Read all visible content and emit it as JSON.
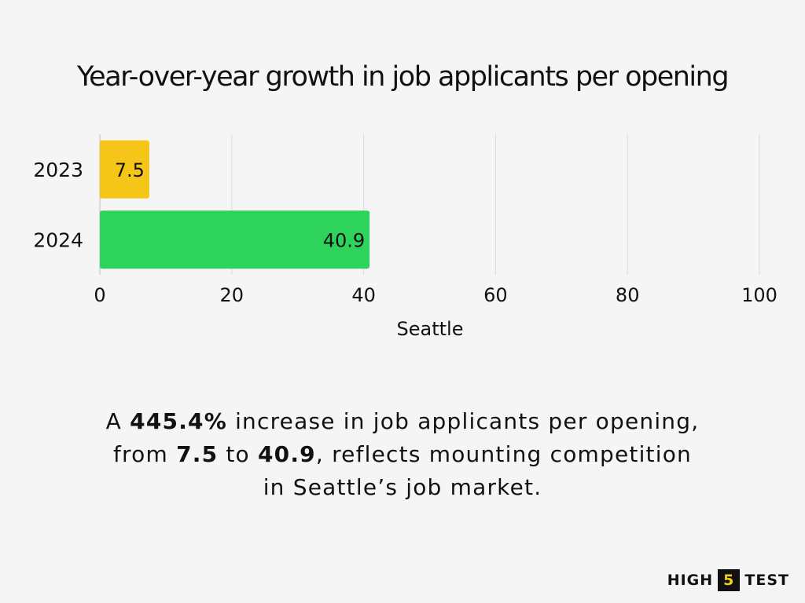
{
  "chart_data": {
    "type": "bar",
    "orientation": "horizontal",
    "title": "Year-over-year growth in job applicants per opening",
    "xlabel": "Seattle",
    "ylabel": "",
    "categories": [
      "2023",
      "2024"
    ],
    "values": [
      7.5,
      40.9
    ],
    "data_labels": [
      "7.5",
      "40.9"
    ],
    "bar_colors": [
      "#f5c518",
      "#2ed35b"
    ],
    "xlim": [
      0,
      100
    ],
    "x_ticks": [
      "0",
      "20",
      "40",
      "60",
      "80",
      "100"
    ],
    "grid": true,
    "legend": "none"
  },
  "caption": {
    "prefix": "A ",
    "pct": "445.4%",
    "mid1": " increase in job applicants per opening,",
    "from_word": "from ",
    "from_val": "7.5",
    "to_word": " to ",
    "to_val": "40.9",
    "tail1": ", reflects mounting competition",
    "line3": "in Seattle’s job market."
  },
  "logo": {
    "left": "HIGH",
    "box": "5",
    "right": "TEST",
    "box_color": "#f5d021"
  }
}
